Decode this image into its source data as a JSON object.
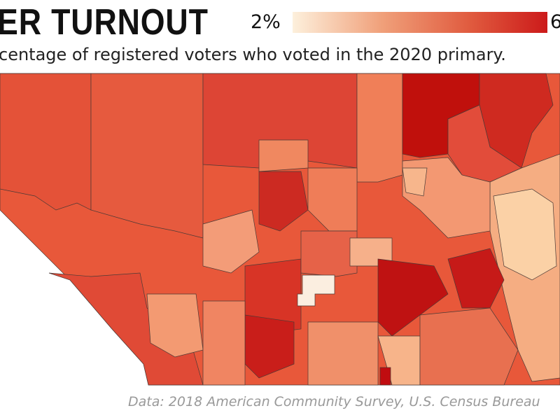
{
  "header": {
    "title": "ER TURNOUT",
    "subtitle": "centage of registered voters who voted in the 2020 primary."
  },
  "legend": {
    "min_label": "2%",
    "max_label": "6"
  },
  "footer": {
    "source": "Data: 2018 American Community Survey, U.S. Census Bureau"
  }
}
